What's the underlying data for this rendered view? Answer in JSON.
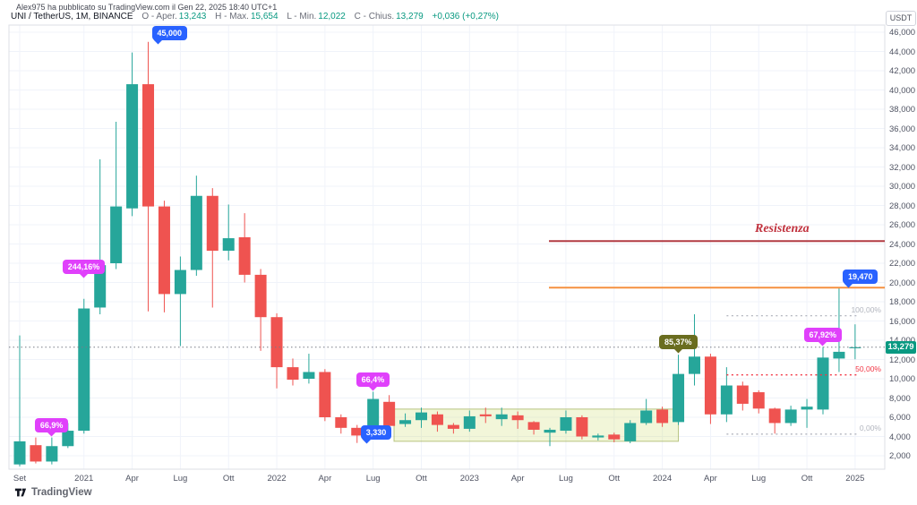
{
  "page": {
    "publish_text": "Alex975 ha pubblicato su TradingView.com il Gen 22, 2025 18:40 UTC+1",
    "footer_logo": "TradingView"
  },
  "legend": {
    "symbol": "UNI / TetherUS, 1M, BINANCE",
    "o_label": "O - Aper.",
    "o": "13,243",
    "h_label": "H - Max.",
    "h": "15,654",
    "l_label": "L - Min.",
    "l": "12,022",
    "c_label": "C - Chius.",
    "c": "13,279",
    "change": "+0,036 (+0,27%)"
  },
  "axis": {
    "unit": "USDT",
    "y_ticks": [
      [
        46,
        "46,000"
      ],
      [
        44,
        "44,000"
      ],
      [
        42,
        "42,000"
      ],
      [
        40,
        "40,000"
      ],
      [
        38,
        "38,000"
      ],
      [
        36,
        "36,000"
      ],
      [
        34,
        "34,000"
      ],
      [
        32,
        "32,000"
      ],
      [
        30,
        "30,000"
      ],
      [
        28,
        "28,000"
      ],
      [
        26,
        "26,000"
      ],
      [
        24,
        "24,000"
      ],
      [
        22,
        "22,000"
      ],
      [
        20,
        "20,000"
      ],
      [
        18,
        "18,000"
      ],
      [
        16,
        "16,000"
      ],
      [
        14,
        "14,000"
      ],
      [
        12,
        "12,000"
      ],
      [
        10,
        "10,000"
      ],
      [
        8,
        "8,000"
      ],
      [
        6,
        "6,000"
      ],
      [
        4,
        "4,000"
      ],
      [
        2,
        "2,000"
      ]
    ],
    "x_ticks": [
      {
        "label": "Set",
        "month": 0,
        "is_year": false
      },
      {
        "label": "2021",
        "month": 4,
        "is_year": true
      },
      {
        "label": "Apr",
        "month": 7,
        "is_year": false
      },
      {
        "label": "Lug",
        "month": 10,
        "is_year": false
      },
      {
        "label": "Ott",
        "month": 13,
        "is_year": false
      },
      {
        "label": "2022",
        "month": 16,
        "is_year": true
      },
      {
        "label": "Apr",
        "month": 19,
        "is_year": false
      },
      {
        "label": "Lug",
        "month": 22,
        "is_year": false
      },
      {
        "label": "Ott",
        "month": 25,
        "is_year": false
      },
      {
        "label": "2023",
        "month": 28,
        "is_year": true
      },
      {
        "label": "Apr",
        "month": 31,
        "is_year": false
      },
      {
        "label": "Lug",
        "month": 34,
        "is_year": false
      },
      {
        "label": "Ott",
        "month": 37,
        "is_year": false
      },
      {
        "label": "2024",
        "month": 40,
        "is_year": true
      },
      {
        "label": "Apr",
        "month": 43,
        "is_year": false
      },
      {
        "label": "Lug",
        "month": 46,
        "is_year": false
      },
      {
        "label": "Ott",
        "month": 49,
        "is_year": false
      },
      {
        "label": "2025",
        "month": 52,
        "is_year": true
      }
    ]
  },
  "colors": {
    "up": "#26a69a",
    "down": "#ef5350",
    "badge": "#089981",
    "blue": "#2962ff",
    "magenta": "#e040fb",
    "olive": "#6a6d1f",
    "resistance_line": "#b23b43",
    "resistance_text": "#c0303c",
    "orange": "#f59140",
    "fib_gray": "#b2b5be",
    "fib_red": "#f23645",
    "current_price_line": "#787b86",
    "grid": "#f0f3fa",
    "border": "#dcdfe6"
  },
  "overlays": {
    "current_price": {
      "price": 13.279,
      "label": "13,279"
    },
    "resistance": {
      "label": "Resistenza",
      "price": 24.3,
      "from_month": 33
    },
    "orange_line": {
      "price": 19.47,
      "from_month": 33
    },
    "fib": {
      "from_month": 44,
      "to_month": 52.2,
      "levels": [
        {
          "label": "100,00%",
          "price": 16.55,
          "color_key": "fib_gray"
        },
        {
          "label": "50,00%",
          "price": 10.4,
          "color_key": "fib_red"
        },
        {
          "label": "0,00%",
          "price": 4.25,
          "color_key": "fib_gray"
        }
      ]
    },
    "range_box": {
      "from_month": 23.3,
      "to_month": 41,
      "top_price": 6.85,
      "bottom_price": 3.5
    },
    "callouts": [
      {
        "name": "callout-45000",
        "text": "45,000",
        "style": "blue",
        "month": 8,
        "price": 44.8,
        "tail": "down-left"
      },
      {
        "name": "callout-244-16pct",
        "text": "244,16%",
        "style": "magenta",
        "month": 4,
        "price": 20.3,
        "tail": "down"
      },
      {
        "name": "callout-66-9pct",
        "text": "66,9%",
        "style": "magenta",
        "month": 2,
        "price": 3.9,
        "tail": "down"
      },
      {
        "name": "callout-66-4pct",
        "text": "66,4%",
        "style": "magenta",
        "month": 22,
        "price": 8.65,
        "tail": "down"
      },
      {
        "name": "callout-3330",
        "text": "3,330",
        "style": "blue",
        "month": 21,
        "price": 3.33,
        "tail": "down-left"
      },
      {
        "name": "callout-85-37pct",
        "text": "85,37%",
        "style": "olive",
        "month": 41,
        "price": 12.5,
        "tail": "down"
      },
      {
        "name": "callout-67-92pct",
        "text": "67,92%",
        "style": "magenta",
        "month": 50,
        "price": 13.3,
        "tail": "down"
      },
      {
        "name": "callout-19470",
        "text": "19,470",
        "style": "blue",
        "month": 51,
        "price": 19.47,
        "tail": "down-left"
      }
    ]
  },
  "chart_data": {
    "type": "candlestick",
    "title": "UNI / TetherUS, 1M, BINANCE",
    "symbol": "UNI/TetherUS",
    "interval": "1M",
    "exchange": "BINANCE",
    "unit": "USDT",
    "ylim": [
      2,
      46
    ],
    "months": [
      "2020-09",
      "2020-10",
      "2020-11",
      "2020-12",
      "2021-01",
      "2021-02",
      "2021-03",
      "2021-04",
      "2021-05",
      "2021-06",
      "2021-07",
      "2021-08",
      "2021-09",
      "2021-10",
      "2021-11",
      "2021-12",
      "2022-01",
      "2022-02",
      "2022-03",
      "2022-04",
      "2022-05",
      "2022-06",
      "2022-07",
      "2022-08",
      "2022-09",
      "2022-10",
      "2022-11",
      "2022-12",
      "2023-01",
      "2023-02",
      "2023-03",
      "2023-04",
      "2023-05",
      "2023-06",
      "2023-07",
      "2023-08",
      "2023-09",
      "2023-10",
      "2023-11",
      "2023-12",
      "2024-01",
      "2024-02",
      "2024-03",
      "2024-04",
      "2024-05",
      "2024-06",
      "2024-07",
      "2024-08",
      "2024-09",
      "2024-10",
      "2024-11",
      "2024-12",
      "2025-01"
    ],
    "ohlc": [
      [
        1.1,
        14.5,
        0.9,
        3.5
      ],
      [
        3.1,
        3.9,
        1.2,
        1.4
      ],
      [
        1.4,
        3.9,
        1.1,
        3.0
      ],
      [
        3.0,
        5.4,
        2.8,
        4.6
      ],
      [
        4.6,
        18.3,
        4.3,
        17.3
      ],
      [
        17.4,
        32.8,
        16.7,
        21.8
      ],
      [
        22.0,
        36.7,
        21.4,
        27.9
      ],
      [
        27.7,
        43.9,
        26.9,
        40.6
      ],
      [
        40.6,
        45.0,
        17.0,
        27.9
      ],
      [
        27.9,
        28.5,
        16.9,
        18.8
      ],
      [
        18.8,
        22.7,
        13.4,
        21.3
      ],
      [
        21.3,
        31.1,
        20.7,
        29.0
      ],
      [
        29.0,
        29.8,
        17.4,
        23.3
      ],
      [
        23.3,
        28.1,
        22.3,
        24.6
      ],
      [
        24.7,
        27.2,
        20.0,
        20.8
      ],
      [
        20.8,
        21.4,
        12.9,
        16.4
      ],
      [
        16.4,
        16.8,
        9.0,
        11.2
      ],
      [
        11.2,
        12.1,
        9.3,
        9.9
      ],
      [
        10.0,
        12.6,
        9.5,
        10.7
      ],
      [
        10.7,
        11.0,
        5.6,
        6.0
      ],
      [
        6.0,
        6.3,
        4.3,
        4.9
      ],
      [
        4.9,
        5.2,
        3.33,
        4.1
      ],
      [
        4.3,
        8.65,
        4.0,
        7.9
      ],
      [
        7.6,
        8.3,
        4.8,
        5.1
      ],
      [
        5.3,
        6.4,
        5.0,
        5.7
      ],
      [
        5.7,
        7.0,
        4.9,
        6.5
      ],
      [
        6.3,
        6.6,
        4.5,
        5.2
      ],
      [
        5.2,
        5.4,
        4.3,
        4.8
      ],
      [
        4.8,
        6.7,
        4.5,
        6.1
      ],
      [
        6.3,
        7.0,
        5.4,
        6.1
      ],
      [
        5.8,
        7.0,
        5.1,
        6.3
      ],
      [
        6.2,
        6.6,
        4.8,
        5.7
      ],
      [
        5.5,
        5.6,
        4.2,
        4.7
      ],
      [
        4.4,
        4.9,
        3.0,
        4.7
      ],
      [
        4.6,
        6.7,
        4.3,
        6.0
      ],
      [
        6.0,
        6.2,
        3.7,
        4.0
      ],
      [
        3.9,
        4.3,
        3.6,
        4.1
      ],
      [
        4.2,
        4.4,
        3.4,
        3.7
      ],
      [
        3.5,
        5.7,
        3.3,
        5.4
      ],
      [
        5.4,
        7.9,
        5.2,
        6.7
      ],
      [
        6.8,
        7.1,
        5.0,
        5.4
      ],
      [
        5.5,
        12.5,
        5.2,
        10.5
      ],
      [
        10.5,
        16.7,
        9.3,
        12.3
      ],
      [
        12.3,
        12.6,
        5.3,
        6.3
      ],
      [
        6.3,
        11.2,
        5.5,
        9.3
      ],
      [
        9.3,
        9.7,
        6.7,
        7.4
      ],
      [
        8.6,
        8.8,
        6.4,
        6.9
      ],
      [
        6.9,
        7.0,
        4.3,
        5.4
      ],
      [
        5.4,
        7.2,
        5.1,
        6.8
      ],
      [
        6.8,
        7.9,
        4.9,
        7.1
      ],
      [
        6.8,
        13.3,
        6.3,
        12.2
      ],
      [
        12.1,
        19.47,
        10.7,
        12.8
      ],
      [
        13.243,
        15.654,
        12.022,
        13.279
      ]
    ]
  }
}
